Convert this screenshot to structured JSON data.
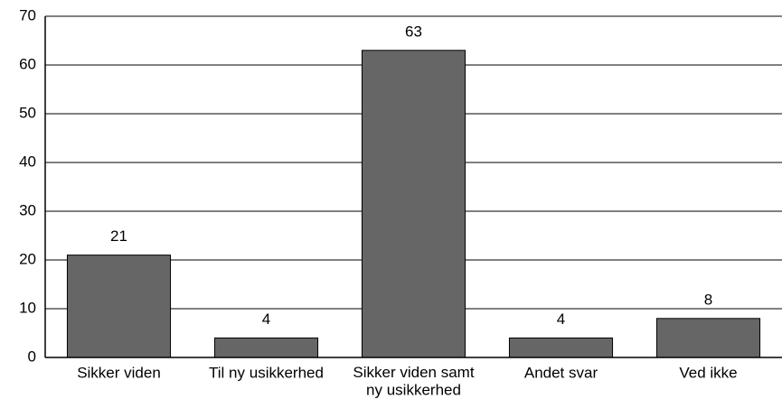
{
  "chart_data": {
    "type": "bar",
    "categories": [
      "Sikker viden",
      "Til ny usikkerhed",
      "Sikker viden samt\nny usikkerhed",
      "Andet svar",
      "Ved ikke"
    ],
    "values": [
      21,
      4,
      63,
      4,
      8
    ],
    "color": "#666666",
    "ylim": [
      0,
      70
    ],
    "yticks": [
      0,
      10,
      20,
      30,
      40,
      50,
      60,
      70
    ],
    "grid": true
  }
}
